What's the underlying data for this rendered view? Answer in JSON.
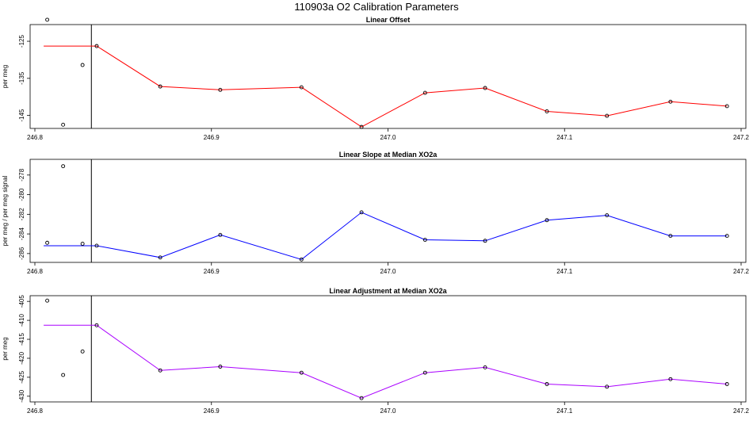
{
  "title": "110903a   O2 Calibration Parameters",
  "chart_data": [
    {
      "type": "line",
      "title": "Linear Offset",
      "ylabel": "per meg",
      "xlim": [
        246.8,
        247.2
      ],
      "ylim": [
        -148.5,
        -120.5
      ],
      "xticks": [
        246.8,
        246.9,
        247.0,
        247.1,
        247.2
      ],
      "xtick_labels": [
        "246.8",
        "246.9",
        "247.0",
        "247.1",
        "247.2"
      ],
      "yticks": [
        -125,
        -135,
        -145
      ],
      "ytick_labels": [
        "-125",
        "-135",
        "-145"
      ],
      "vertical_line_x": 246.832,
      "color": "#ff0000",
      "series": [
        {
          "x": [
            246.805,
            246.835,
            246.871,
            246.905,
            246.951,
            246.985,
            247.021,
            247.055,
            247.09,
            247.124,
            247.16,
            247.192
          ],
          "y": [
            -126.3,
            -126.3,
            -137.2,
            -138.1,
            -137.4,
            -148.1,
            -138.9,
            -137.6,
            -143.9,
            -145.1,
            -141.3,
            -142.5
          ]
        }
      ],
      "outliers": {
        "x": [
          246.807,
          246.816,
          246.827
        ],
        "y": [
          -119.2,
          -147.5,
          -131.4
        ]
      }
    },
    {
      "type": "line",
      "title": "Linear Slope at Median XO2a",
      "ylabel": "per meg / per meg signal",
      "xlim": [
        246.8,
        247.2
      ],
      "ylim": [
        -286.9,
        -276.4
      ],
      "xticks": [
        246.8,
        246.9,
        247.0,
        247.1,
        247.2
      ],
      "xtick_labels": [
        "246.8",
        "246.9",
        "247.0",
        "247.1",
        "247.2"
      ],
      "yticks": [
        -278,
        -280,
        -282,
        -284,
        -286
      ],
      "ytick_labels": [
        "-278",
        "-280",
        "-282",
        "-284",
        "-286"
      ],
      "vertical_line_x": 246.832,
      "color": "#0000ff",
      "series": [
        {
          "x": [
            246.805,
            246.835,
            246.871,
            246.905,
            246.951,
            246.985,
            247.021,
            247.055,
            247.09,
            247.124,
            247.16,
            247.192
          ],
          "y": [
            -285.2,
            -285.2,
            -286.4,
            -284.1,
            -286.6,
            -281.8,
            -284.6,
            -284.7,
            -282.6,
            -282.1,
            -284.2,
            -284.2
          ]
        }
      ],
      "outliers": {
        "x": [
          246.807,
          246.816,
          246.827
        ],
        "y": [
          -284.9,
          -277.1,
          -285.0
        ]
      }
    },
    {
      "type": "line",
      "title": "Linear Adjustment at Median XO2a",
      "ylabel": "per meg",
      "xlim": [
        246.8,
        247.2
      ],
      "ylim": [
        -431.5,
        -403.5
      ],
      "xticks": [
        246.8,
        246.9,
        247.0,
        247.1,
        247.2
      ],
      "xtick_labels": [
        "246.8",
        "246.9",
        "247.0",
        "247.1",
        "247.2"
      ],
      "yticks": [
        -405,
        -410,
        -415,
        -420,
        -425,
        -430
      ],
      "ytick_labels": [
        "-405",
        "-410",
        "-415",
        "-420",
        "-425",
        "-430"
      ],
      "vertical_line_x": 246.832,
      "color": "#aa00ff",
      "series": [
        {
          "x": [
            246.805,
            246.835,
            246.871,
            246.905,
            246.951,
            246.985,
            247.021,
            247.055,
            247.09,
            247.124,
            247.16,
            247.192
          ],
          "y": [
            -411.3,
            -411.3,
            -423.2,
            -422.2,
            -423.8,
            -430.5,
            -423.8,
            -422.4,
            -426.8,
            -427.5,
            -425.5,
            -426.8
          ]
        }
      ],
      "outliers": {
        "x": [
          246.807,
          246.816,
          246.827
        ],
        "y": [
          -404.8,
          -424.4,
          -418.2
        ]
      }
    }
  ]
}
